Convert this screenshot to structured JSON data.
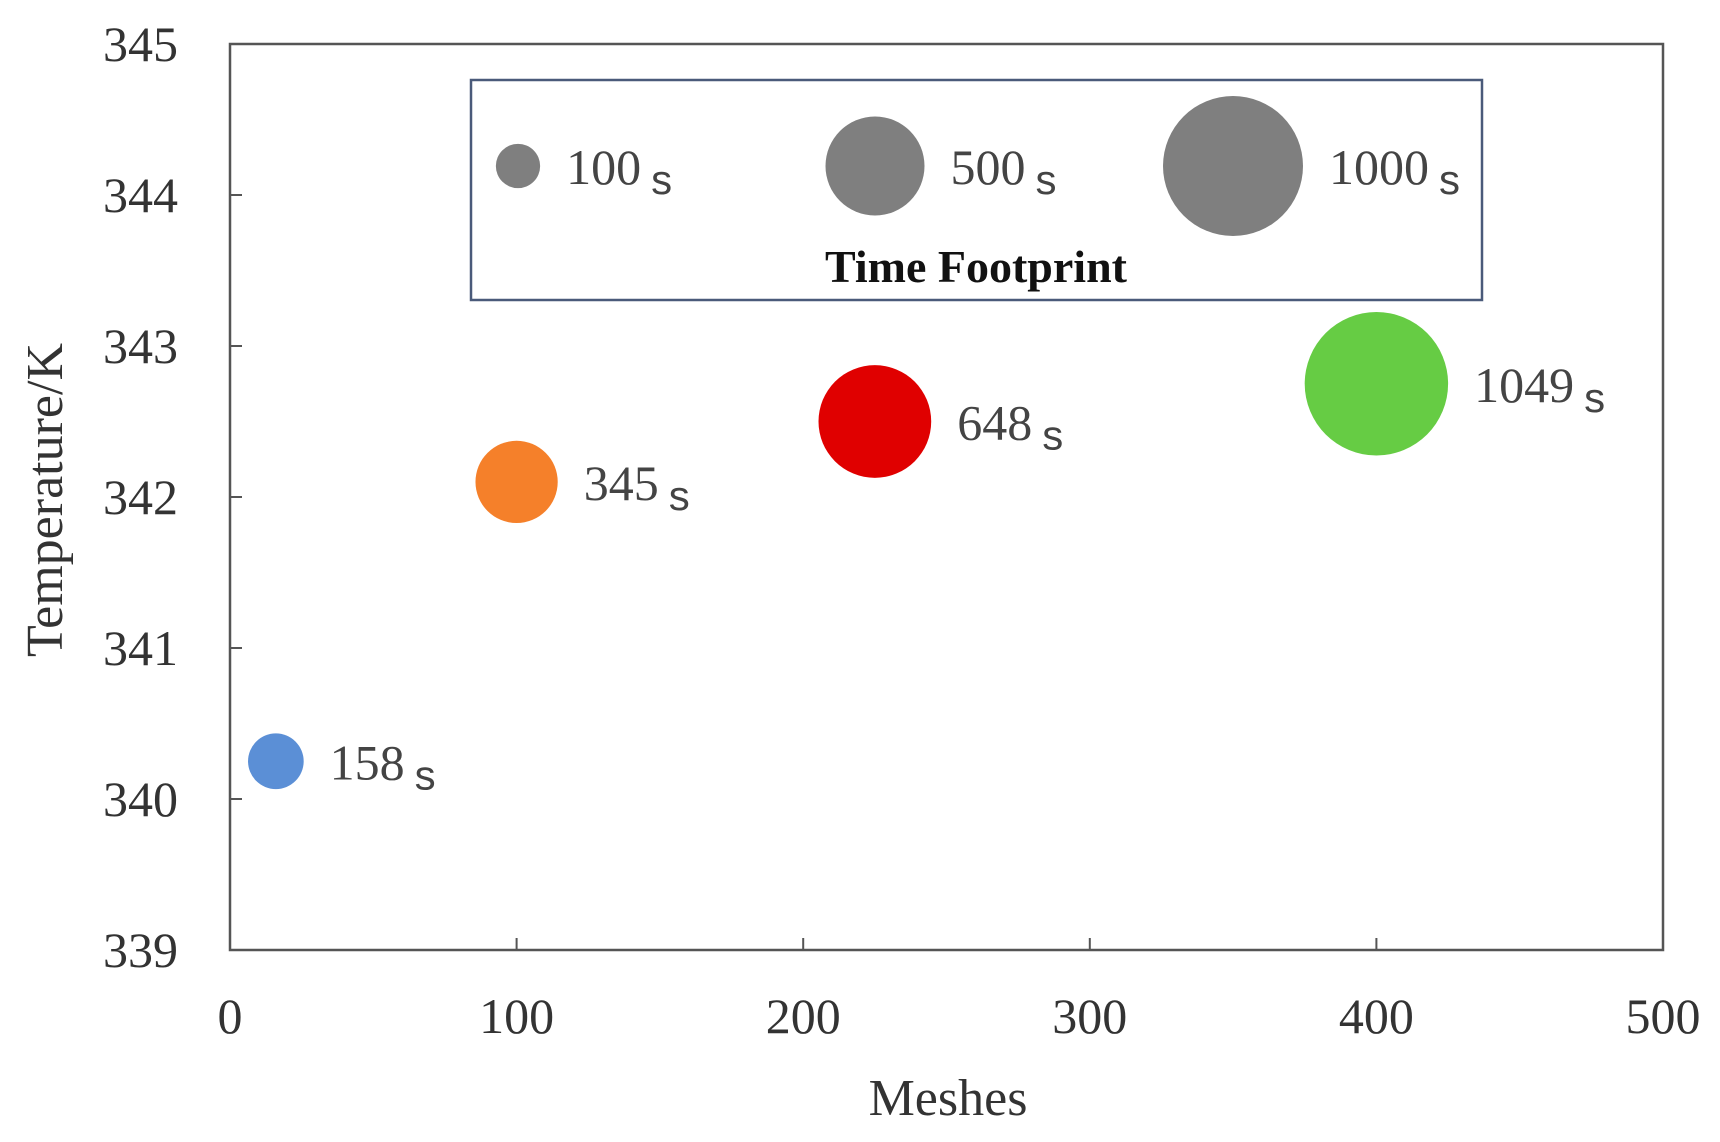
{
  "chart_data": {
    "type": "scatter",
    "title": "",
    "xlabel": "Meshes",
    "ylabel": "Temperature/K",
    "xlim": [
      0,
      500
    ],
    "ylim": [
      339,
      345
    ],
    "xticks": [
      "0",
      "100",
      "200",
      "300",
      "400",
      "500"
    ],
    "yticks": [
      "339",
      "340",
      "341",
      "342",
      "343",
      "344",
      "345"
    ],
    "grid": false,
    "points": [
      {
        "x": 16,
        "y": 340.25,
        "time": 158,
        "label": "158",
        "unit": "s",
        "color": "#5b8fd6"
      },
      {
        "x": 100,
        "y": 342.1,
        "time": 345,
        "label": "345",
        "unit": "s",
        "color": "#f5802a"
      },
      {
        "x": 225,
        "y": 342.5,
        "time": 648,
        "label": "648",
        "unit": "s",
        "color": "#e00000"
      },
      {
        "x": 400,
        "y": 342.75,
        "time": 1049,
        "label": "1049",
        "unit": "s",
        "color": "#66cc44"
      }
    ],
    "legend": {
      "title": "Time Footprint",
      "placement": "top",
      "color": "#7f7f7f",
      "entries": [
        {
          "time": 100,
          "label": "100",
          "unit": "s"
        },
        {
          "time": 500,
          "label": "500",
          "unit": "s"
        },
        {
          "time": 1000,
          "label": "1000",
          "unit": "s"
        }
      ]
    }
  }
}
